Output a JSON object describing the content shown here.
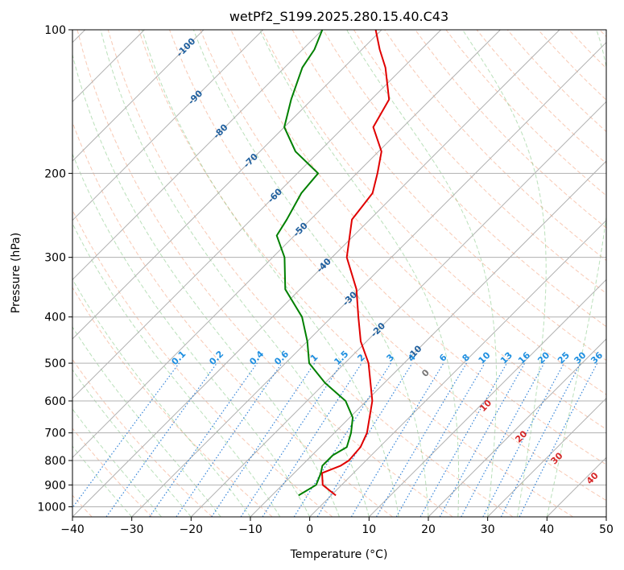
{
  "chart_data": {
    "type": "line",
    "title": "wetPf2_S199.2025.280.15.40.C43",
    "xlabel": "Temperature (°C)",
    "ylabel": "Pressure (hPa)",
    "xlim": [
      -40,
      50
    ],
    "ylim": [
      1050,
      100
    ],
    "y_scale": "log",
    "x_ticks": [
      -40,
      -30,
      -20,
      -10,
      0,
      10,
      20,
      30,
      40,
      50
    ],
    "x_tick_labels": [
      "−40",
      "−30",
      "−20",
      "−10",
      "0",
      "10",
      "20",
      "30",
      "40",
      "50"
    ],
    "y_ticks": [
      1000,
      900,
      800,
      700,
      600,
      500,
      400,
      300,
      200,
      100
    ],
    "y_tick_labels": [
      "1000",
      "900",
      "800",
      "700",
      "600",
      "500",
      "400",
      "300",
      "200",
      "100"
    ],
    "skew_degrees": 45,
    "grid": true,
    "series": [
      {
        "name": "Temperature",
        "color": "#e00000",
        "points": [
          [
            947,
            0.8
          ],
          [
            900,
            -3.2
          ],
          [
            850,
            -5.3
          ],
          [
            820,
            -3.4
          ],
          [
            800,
            -2.9
          ],
          [
            750,
            -3.2
          ],
          [
            700,
            -4.5
          ],
          [
            600,
            -9.0
          ],
          [
            500,
            -16.0
          ],
          [
            450,
            -21.0
          ],
          [
            400,
            -25.5
          ],
          [
            350,
            -30.5
          ],
          [
            300,
            -37.5
          ],
          [
            250,
            -43.0
          ],
          [
            220,
            -44.0
          ],
          [
            200,
            -46.5
          ],
          [
            180,
            -49.5
          ],
          [
            160,
            -55.0
          ],
          [
            140,
            -57.0
          ],
          [
            120,
            -63.0
          ],
          [
            110,
            -67.0
          ],
          [
            100,
            -71.0
          ]
        ]
      },
      {
        "name": "Dewpoint",
        "color": "#008000",
        "points": [
          [
            947,
            -5.5
          ],
          [
            900,
            -4.3
          ],
          [
            850,
            -5.5
          ],
          [
            820,
            -6.5
          ],
          [
            780,
            -6.5
          ],
          [
            750,
            -5.5
          ],
          [
            700,
            -7.2
          ],
          [
            650,
            -9.5
          ],
          [
            600,
            -13.5
          ],
          [
            550,
            -20.0
          ],
          [
            500,
            -26.0
          ],
          [
            450,
            -30.0
          ],
          [
            400,
            -35.0
          ],
          [
            350,
            -42.5
          ],
          [
            300,
            -48.0
          ],
          [
            270,
            -53.0
          ],
          [
            250,
            -54.0
          ],
          [
            220,
            -56.0
          ],
          [
            200,
            -56.5
          ],
          [
            180,
            -64.0
          ],
          [
            160,
            -70.0
          ],
          [
            140,
            -73.5
          ],
          [
            120,
            -77.0
          ],
          [
            110,
            -78.0
          ],
          [
            100,
            -80.0
          ]
        ]
      }
    ],
    "isotherm_labels": [
      "-100",
      "-90",
      "-80",
      "-70",
      "-60",
      "-50",
      "-40",
      "-30",
      "-20",
      "-10"
    ],
    "mixing_ratio_labels": [
      "0.1",
      "0.2",
      "0.4",
      "0.6",
      "1",
      "1.5",
      "2",
      "3",
      "4",
      "6",
      "8",
      "10",
      "13",
      "16",
      "20",
      "25",
      "30",
      "36"
    ],
    "isotherm_zero_label": "0",
    "upper_temp_labels": [
      "10",
      "20",
      "30",
      "40"
    ],
    "colors": {
      "temperature": "#e00000",
      "dewpoint": "#008000",
      "dry_adiabat": "#f4a582",
      "moist_adiabat": "#66bb66",
      "mixing_ratio": "#1f77d4",
      "isotherm_label": "#1f5f9e",
      "grid": "#b0b0b0"
    }
  }
}
